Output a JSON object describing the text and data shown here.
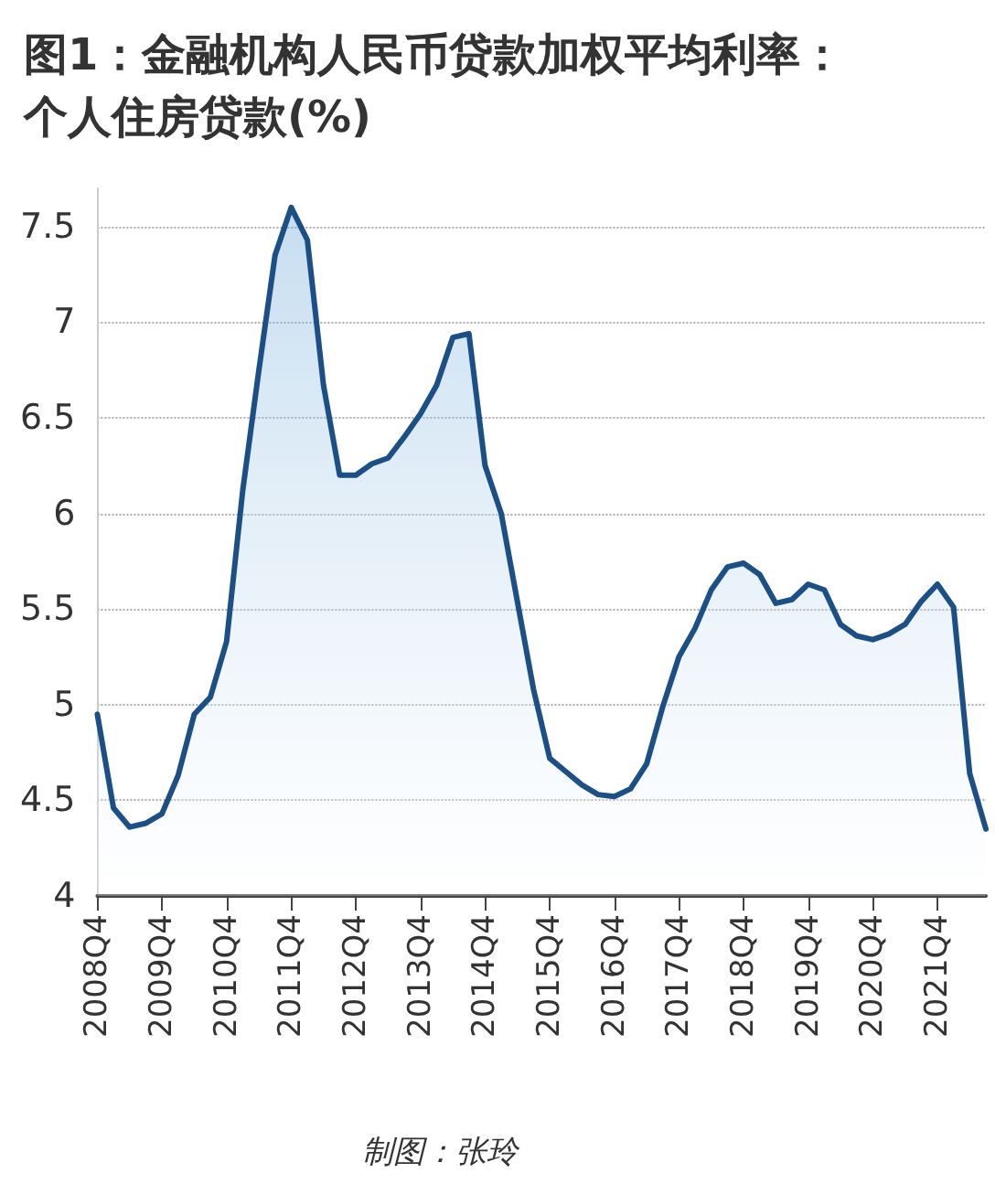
{
  "chart_data": {
    "type": "area",
    "title": "图1：金融机构人民币贷款加权平均利率：个人住房贷款(%)",
    "categories": [
      "2008Q4",
      null,
      null,
      null,
      "2009Q4",
      null,
      null,
      null,
      "2010Q4",
      null,
      null,
      null,
      "2011Q4",
      null,
      null,
      null,
      "2012Q4",
      null,
      null,
      null,
      "2013Q4",
      null,
      null,
      null,
      "2014Q4",
      null,
      null,
      null,
      "2015Q4",
      null,
      null,
      null,
      "2016Q4",
      null,
      null,
      null,
      "2017Q4",
      null,
      null,
      null,
      "2018Q4",
      null,
      null,
      null,
      "2019Q4",
      null,
      null,
      null,
      "2020Q4",
      null,
      null,
      null,
      "2021Q4",
      null,
      null,
      null
    ],
    "series": [
      {
        "color": "#1b4f86",
        "values": [
          4.95,
          4.46,
          4.36,
          4.38,
          4.43,
          4.63,
          4.95,
          5.04,
          5.33,
          6.12,
          6.75,
          7.35,
          7.6,
          7.43,
          6.67,
          6.2,
          6.2,
          6.26,
          6.29,
          6.4,
          6.52,
          6.67,
          6.92,
          6.94,
          6.25,
          6.0,
          5.54,
          5.08,
          4.72,
          4.65,
          4.58,
          4.53,
          4.52,
          4.56,
          4.69,
          4.99,
          5.25,
          5.4,
          5.6,
          5.72,
          5.74,
          5.68,
          5.53,
          5.55,
          5.63,
          5.6,
          5.42,
          5.36,
          5.34,
          5.37,
          5.42,
          5.54,
          5.63,
          5.51,
          4.64,
          4.35
        ]
      }
    ],
    "ylim": [
      4,
      7.7
    ],
    "yticks": [
      4,
      4.5,
      5,
      5.5,
      6,
      6.5,
      7,
      7.5
    ],
    "grid": "y",
    "marker": "none",
    "line_style": "solid",
    "annotations": [
      "制图：张玲"
    ]
  }
}
